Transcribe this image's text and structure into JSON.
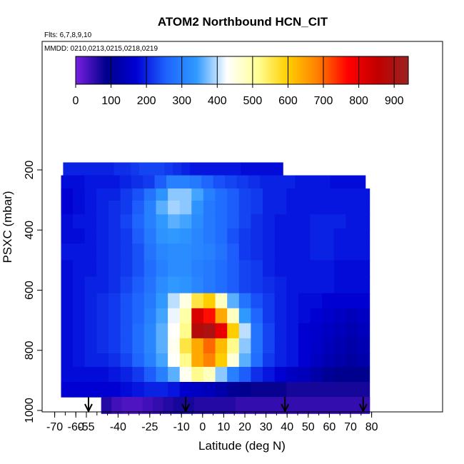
{
  "chart_data": {
    "type": "heatmap",
    "title": "ATOM2 Northbound HCN_CIT",
    "subtitle_flights": "Flts: 6,7,8,9,10",
    "subtitle_dates": "MMDD: 0210,0213,0215,0218,0219",
    "xlabel": "Latitude (deg N)",
    "ylabel": "PSXC (mbar)",
    "xlim": [
      -70,
      83
    ],
    "ylim": [
      1010,
      80
    ],
    "y_reversed": true,
    "x_tick_labels": [
      "-70",
      "-60",
      "-55",
      "-40",
      "-25",
      "-10",
      "0",
      "10",
      "20",
      "30",
      "40",
      "50",
      "60",
      "70",
      "80"
    ],
    "y_tick_labels": [
      "200",
      "400",
      "600",
      "800",
      "1000"
    ],
    "colorbar": {
      "min": 0,
      "max": 940,
      "tick_labels": [
        "0",
        "100",
        "200",
        "300",
        "400",
        "500",
        "600",
        "700",
        "800",
        "900"
      ],
      "colors": [
        "#7a1fe0",
        "#00008b",
        "#0000d4",
        "#1e64ff",
        "#2f9aff",
        "#ffffff",
        "#ffff99",
        "#ffd000",
        "#ff7f00",
        "#ff0000",
        "#c00000",
        "#9b2222"
      ]
    },
    "arrow_latitudes": [
      -54,
      -8,
      39,
      76
    ],
    "heatmap_rows": [
      {
        "p_top": 175,
        "p_bot": 218,
        "lat_min": -66,
        "lat_max": 38,
        "values": [
          200,
          200,
          200,
          200,
          200,
          200,
          210,
          210,
          220,
          230,
          230,
          230,
          220,
          210,
          200,
          190,
          190,
          190,
          190,
          190,
          190,
          180,
          180,
          180,
          180,
          180
        ]
      },
      {
        "p_top": 218,
        "p_bot": 262,
        "lat_min": -67,
        "lat_max": 77,
        "values": [
          180,
          180,
          190,
          190,
          190,
          200,
          210,
          220,
          250,
          300,
          300,
          290,
          260,
          240,
          230,
          220,
          210,
          200,
          200,
          200,
          190,
          190,
          190,
          180,
          180,
          180
        ]
      },
      {
        "p_top": 262,
        "p_bot": 302,
        "lat_min": -67,
        "lat_max": 79,
        "values": [
          170,
          180,
          190,
          200,
          200,
          220,
          240,
          280,
          330,
          380,
          380,
          350,
          300,
          270,
          250,
          230,
          220,
          200,
          200,
          190,
          190,
          190,
          190,
          190,
          190,
          190
        ]
      },
      {
        "p_top": 302,
        "p_bot": 348,
        "lat_min": -67,
        "lat_max": 79,
        "values": [
          170,
          180,
          190,
          200,
          210,
          220,
          250,
          300,
          360,
          390,
          380,
          330,
          290,
          270,
          250,
          230,
          220,
          200,
          200,
          190,
          190,
          190,
          190,
          190,
          190,
          190
        ]
      },
      {
        "p_top": 348,
        "p_bot": 395,
        "lat_min": -67,
        "lat_max": 79,
        "values": [
          180,
          190,
          190,
          200,
          210,
          230,
          260,
          300,
          340,
          360,
          350,
          320,
          290,
          270,
          250,
          230,
          210,
          200,
          190,
          190,
          190,
          200,
          200,
          200,
          190,
          190
        ]
      },
      {
        "p_top": 395,
        "p_bot": 445,
        "lat_min": -67,
        "lat_max": 79,
        "values": [
          180,
          180,
          190,
          200,
          210,
          220,
          250,
          290,
          330,
          340,
          330,
          310,
          290,
          270,
          240,
          220,
          210,
          200,
          190,
          190,
          190,
          200,
          200,
          190,
          190,
          190
        ]
      },
      {
        "p_top": 445,
        "p_bot": 500,
        "lat_min": -67,
        "lat_max": 79,
        "values": [
          190,
          190,
          190,
          200,
          210,
          220,
          240,
          280,
          310,
          320,
          320,
          310,
          300,
          280,
          250,
          220,
          210,
          200,
          190,
          190,
          190,
          200,
          200,
          190,
          190,
          190
        ]
      },
      {
        "p_top": 500,
        "p_bot": 555,
        "lat_min": -67,
        "lat_max": 79,
        "values": [
          180,
          190,
          190,
          200,
          210,
          220,
          240,
          270,
          300,
          320,
          320,
          300,
          290,
          270,
          250,
          230,
          220,
          200,
          190,
          190,
          190,
          190,
          190,
          180,
          180,
          180
        ]
      },
      {
        "p_top": 555,
        "p_bot": 610,
        "lat_min": -67,
        "lat_max": 79,
        "values": [
          180,
          190,
          200,
          200,
          210,
          230,
          250,
          280,
          320,
          340,
          330,
          310,
          290,
          270,
          250,
          230,
          220,
          210,
          200,
          190,
          190,
          190,
          190,
          180,
          180,
          180
        ]
      },
      {
        "p_top": 610,
        "p_bot": 660,
        "lat_min": -67,
        "lat_max": 79,
        "values": [
          180,
          190,
          200,
          210,
          220,
          240,
          260,
          290,
          340,
          400,
          450,
          560,
          600,
          480,
          360,
          280,
          240,
          220,
          200,
          190,
          180,
          180,
          170,
          170,
          170,
          170
        ]
      },
      {
        "p_top": 660,
        "p_bot": 710,
        "lat_min": -67,
        "lat_max": 79,
        "values": [
          180,
          190,
          200,
          210,
          220,
          240,
          260,
          300,
          350,
          420,
          500,
          820,
          760,
          640,
          480,
          340,
          260,
          220,
          200,
          190,
          180,
          170,
          160,
          150,
          140,
          150
        ]
      },
      {
        "p_top": 710,
        "p_bot": 760,
        "lat_min": -67,
        "lat_max": 79,
        "values": [
          180,
          190,
          200,
          210,
          220,
          240,
          270,
          310,
          360,
          430,
          520,
          880,
          900,
          800,
          600,
          400,
          280,
          230,
          200,
          190,
          170,
          160,
          150,
          140,
          130,
          140
        ]
      },
      {
        "p_top": 760,
        "p_bot": 810,
        "lat_min": -67,
        "lat_max": 79,
        "values": [
          180,
          190,
          200,
          210,
          220,
          240,
          270,
          310,
          360,
          440,
          560,
          640,
          700,
          620,
          520,
          380,
          280,
          230,
          200,
          190,
          170,
          160,
          140,
          130,
          120,
          130
        ]
      },
      {
        "p_top": 810,
        "p_bot": 855,
        "lat_min": -67,
        "lat_max": 79,
        "values": [
          180,
          190,
          200,
          200,
          210,
          230,
          260,
          300,
          350,
          430,
          520,
          640,
          680,
          600,
          460,
          360,
          270,
          220,
          200,
          190,
          170,
          150,
          130,
          120,
          110,
          120
        ]
      },
      {
        "p_top": 855,
        "p_bot": 905,
        "lat_min": -67,
        "lat_max": 79,
        "values": [
          180,
          180,
          180,
          180,
          190,
          200,
          220,
          250,
          300,
          360,
          440,
          520,
          480,
          380,
          300,
          250,
          210,
          190,
          170,
          150,
          140,
          120,
          100,
          90,
          90,
          90
        ]
      },
      {
        "p_top": 905,
        "p_bot": 955,
        "lat_min": -67,
        "lat_max": 79,
        "values": [
          170,
          170,
          170,
          170,
          170,
          180,
          190,
          200,
          200,
          190,
          160,
          150,
          140,
          120,
          100,
          90,
          80,
          80,
          80,
          70,
          70,
          70,
          70,
          70,
          70,
          70
        ]
      },
      {
        "p_top": 955,
        "p_bot": 1010,
        "lat_min": -48,
        "lat_max": 79,
        "values": [
          60,
          40,
          30,
          30,
          40,
          50,
          60,
          70,
          70,
          60,
          60,
          60,
          60,
          50,
          50,
          50,
          50,
          50,
          50,
          50,
          50,
          50,
          50,
          50,
          50,
          50
        ]
      }
    ]
  }
}
